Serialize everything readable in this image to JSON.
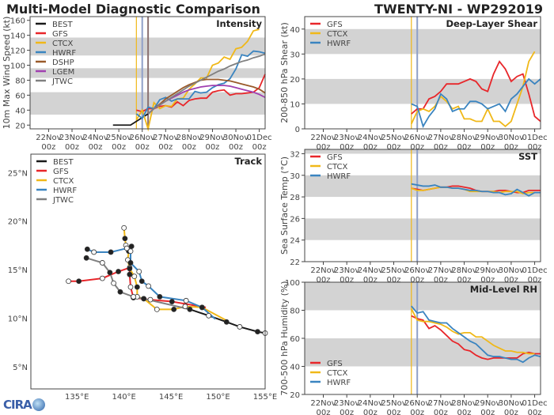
{
  "header": {
    "title": "Multi-Model Diagnostic Comparison",
    "storm": "TWENTY-NI - WP292019"
  },
  "logo": {
    "text": "CIRA"
  },
  "colors": {
    "BEST": "#1a1a1a",
    "GFS": "#e8262a",
    "CTCX": "#f0b818",
    "HWRF": "#3a84c0",
    "DSHP": "#9a5a2a",
    "LGEM": "#a040b0",
    "JTWC": "#808080",
    "band": "#d3d3d3"
  },
  "chart_data": [
    {
      "id": "intensity",
      "type": "line",
      "title": "Intensity",
      "ylabel": "10m Max Wind Speed (kt)",
      "ylim": [
        15,
        165
      ],
      "yticks": [
        20,
        40,
        60,
        80,
        100,
        120,
        140,
        160
      ],
      "bands": [
        [
          34,
          64
        ],
        [
          83,
          96
        ],
        [
          113,
          137
        ]
      ],
      "xlim": [
        "2019-11-21T05:00Z",
        "2019-12-01T06:00Z"
      ],
      "xticks": [
        "2019-11-22",
        "2019-11-23",
        "2019-11-24",
        "2019-11-25",
        "2019-11-26",
        "2019-11-27",
        "2019-11-28",
        "2019-11-29",
        "2019-11-30",
        "2019-12-01"
      ],
      "xticklabels": [
        [
          "22Nov",
          "00z"
        ],
        [
          "23Nov",
          "00z"
        ],
        [
          "24Nov",
          "00z"
        ],
        [
          "25Nov",
          "00z"
        ],
        [
          "26Nov",
          "00z"
        ],
        [
          "27Nov",
          "00z"
        ],
        [
          "28Nov",
          "00z"
        ],
        [
          "29Nov",
          "00z"
        ],
        [
          "30Nov",
          "00z"
        ],
        [
          "01Dec",
          "00z"
        ]
      ],
      "vlines": [
        {
          "t": "2019-11-25T18:00Z",
          "color": "#f0b818"
        },
        {
          "t": "2019-11-26T00:00Z",
          "color": "#8fa0c8"
        },
        {
          "t": "2019-11-26T06:00Z",
          "color": "#8a7070"
        }
      ],
      "legend": "top-left",
      "start": "2019-11-24T18:00Z",
      "step_hours": 6,
      "series": [
        {
          "name": "BEST",
          "values": [
            20,
            20,
            20,
            20,
            25,
            30,
            35
          ]
        },
        {
          "name": "GFS",
          "values": [
            null,
            null,
            null,
            null,
            40,
            38,
            42,
            42,
            45,
            46,
            44,
            51,
            46,
            53,
            55,
            56,
            56,
            64,
            66,
            67,
            60,
            62,
            62,
            63,
            64,
            70,
            88
          ]
        },
        {
          "name": "CTCX",
          "values": [
            null,
            null,
            null,
            null,
            27,
            40,
            15,
            50,
            42,
            46,
            45,
            55,
            56,
            68,
            75,
            83,
            83,
            100,
            103,
            111,
            108,
            122,
            124,
            132,
            146,
            148
          ]
        },
        {
          "name": "HWRF",
          "values": [
            null,
            null,
            null,
            null,
            35,
            29,
            44,
            42,
            54,
            57,
            52,
            55,
            55,
            55,
            65,
            63,
            64,
            70,
            74,
            76,
            82,
            95,
            114,
            112,
            119,
            118,
            116
          ]
        },
        {
          "name": "DSHP",
          "values": [
            null,
            null,
            null,
            null,
            null,
            null,
            35,
            42,
            48,
            55,
            60,
            65,
            70,
            74,
            77,
            80,
            81,
            81,
            81,
            80,
            79,
            77,
            75,
            73,
            71,
            68,
            63
          ]
        },
        {
          "name": "LGEM",
          "values": [
            null,
            null,
            null,
            null,
            null,
            null,
            35,
            42,
            47,
            52,
            56,
            60,
            64,
            67,
            69,
            71,
            72,
            73,
            73,
            73,
            72,
            70,
            68,
            66,
            64,
            61,
            57
          ]
        },
        {
          "name": "JTWC",
          "values": [
            null,
            null,
            null,
            null,
            null,
            null,
            35,
            42,
            47,
            52,
            57,
            62,
            67,
            72,
            76,
            80,
            84,
            88,
            92,
            95,
            99,
            102,
            105,
            107,
            110,
            112,
            115
          ]
        }
      ]
    },
    {
      "id": "shear",
      "type": "line",
      "title": "Deep-Layer Shear",
      "ylabel": "200-850 hPa Shear (kt)",
      "ylim": [
        0,
        45
      ],
      "yticks": [
        0,
        10,
        20,
        30,
        40
      ],
      "bands": [
        [
          10,
          20
        ],
        [
          30,
          40
        ]
      ],
      "xlim": [
        "2019-11-21T05:00Z",
        "2019-12-01T06:00Z"
      ],
      "xticks": [
        "2019-11-22",
        "2019-11-23",
        "2019-11-24",
        "2019-11-25",
        "2019-11-26",
        "2019-11-27",
        "2019-11-28",
        "2019-11-29",
        "2019-11-30",
        "2019-12-01"
      ],
      "xticklabels": [
        [
          "22Nov",
          "00z"
        ],
        [
          "23Nov",
          "00z"
        ],
        [
          "24Nov",
          "00z"
        ],
        [
          "25Nov",
          "00z"
        ],
        [
          "26Nov",
          "00z"
        ],
        [
          "27Nov",
          "00z"
        ],
        [
          "28Nov",
          "00z"
        ],
        [
          "29Nov",
          "00z"
        ],
        [
          "30Nov",
          "00z"
        ],
        [
          "01Dec",
          "00z"
        ]
      ],
      "vlines": [
        {
          "t": "2019-11-25T18:00Z",
          "color": "#f0b818"
        },
        {
          "t": "2019-11-26T00:00Z",
          "color": "#8fa0c8"
        }
      ],
      "legend": "top-left",
      "start": "2019-11-24T18:00Z",
      "step_hours": 6,
      "series": [
        {
          "name": "GFS",
          "values": [
            null,
            null,
            null,
            null,
            6,
            8,
            8,
            12,
            13,
            15,
            18,
            18,
            18,
            19,
            20,
            19,
            16,
            15,
            22,
            27,
            24,
            19,
            21,
            22,
            14,
            5,
            3
          ]
        },
        {
          "name": "CTCX",
          "values": [
            null,
            null,
            null,
            null,
            2,
            7,
            8,
            7,
            9,
            13,
            11,
            8,
            9,
            4,
            4,
            3,
            3,
            8,
            3,
            3,
            1,
            3,
            10,
            17,
            27,
            31
          ]
        },
        {
          "name": "HWRF",
          "values": [
            null,
            null,
            null,
            null,
            10,
            9,
            1,
            5,
            8,
            14,
            12,
            7,
            8,
            8,
            11,
            11,
            10,
            8,
            9,
            10,
            7,
            12,
            14,
            17,
            20,
            18,
            20
          ]
        }
      ]
    },
    {
      "id": "sst",
      "type": "line",
      "title": "SST",
      "ylabel": "Sea Surface Temp (°C)",
      "ylim": [
        22,
        32.4
      ],
      "yticks": [
        22,
        24,
        26,
        28,
        30,
        32
      ],
      "bands": [
        [
          24,
          26
        ],
        [
          28,
          30
        ],
        [
          32,
          32.4
        ]
      ],
      "xlim": [
        "2019-11-21T05:00Z",
        "2019-12-01T06:00Z"
      ],
      "xticks": [
        "2019-11-22",
        "2019-11-23",
        "2019-11-24",
        "2019-11-25",
        "2019-11-26",
        "2019-11-27",
        "2019-11-28",
        "2019-11-29",
        "2019-11-30",
        "2019-12-01"
      ],
      "xticklabels": [
        [
          "22Nov",
          "00z"
        ],
        [
          "23Nov",
          "00z"
        ],
        [
          "24Nov",
          "00z"
        ],
        [
          "25Nov",
          "00z"
        ],
        [
          "26Nov",
          "00z"
        ],
        [
          "27Nov",
          "00z"
        ],
        [
          "28Nov",
          "00z"
        ],
        [
          "29Nov",
          "00z"
        ],
        [
          "30Nov",
          "00z"
        ],
        [
          "01Dec",
          "00z"
        ]
      ],
      "vlines": [
        {
          "t": "2019-11-25T18:00Z",
          "color": "#f0b818"
        },
        {
          "t": "2019-11-26T00:00Z",
          "color": "#8fa0c8"
        }
      ],
      "legend": "top-left",
      "start": "2019-11-24T18:00Z",
      "step_hours": 6,
      "series": [
        {
          "name": "GFS",
          "values": [
            null,
            null,
            null,
            null,
            28.8,
            28.7,
            28.6,
            28.7,
            28.8,
            28.9,
            28.9,
            29.0,
            29.0,
            28.9,
            28.8,
            28.6,
            28.5,
            28.5,
            28.5,
            28.6,
            28.6,
            28.5,
            28.4,
            28.4,
            28.6,
            28.6,
            28.6
          ]
        },
        {
          "name": "CTCX",
          "values": [
            null,
            null,
            null,
            null,
            28.8,
            28.6,
            28.6,
            28.7,
            28.8,
            28.9,
            28.9,
            28.8,
            28.8,
            28.7,
            28.5,
            28.5,
            28.5,
            28.5,
            28.5,
            28.4,
            28.5,
            28.5,
            28.5,
            28.3,
            28.4,
            28.4
          ]
        },
        {
          "name": "HWRF",
          "values": [
            null,
            null,
            null,
            null,
            29.2,
            29.1,
            29.0,
            29.0,
            29.1,
            28.9,
            28.9,
            28.8,
            28.8,
            28.7,
            28.6,
            28.6,
            28.5,
            28.5,
            28.4,
            28.4,
            28.2,
            28.3,
            28.7,
            28.4,
            28.1,
            28.4,
            28.4
          ]
        }
      ]
    },
    {
      "id": "rh",
      "type": "line",
      "title": "Mid-Level RH",
      "ylabel": "700-500 hPa Humidity (%)",
      "ylim": [
        20,
        100
      ],
      "yticks": [
        20,
        40,
        60,
        80,
        100
      ],
      "bands": [
        [
          40,
          60
        ],
        [
          80,
          100
        ]
      ],
      "xlim": [
        "2019-11-21T05:00Z",
        "2019-12-01T06:00Z"
      ],
      "xticks": [
        "2019-11-22",
        "2019-11-23",
        "2019-11-24",
        "2019-11-25",
        "2019-11-26",
        "2019-11-27",
        "2019-11-28",
        "2019-11-29",
        "2019-11-30",
        "2019-12-01"
      ],
      "xticklabels": [
        [
          "22Nov",
          "00z"
        ],
        [
          "23Nov",
          "00z"
        ],
        [
          "24Nov",
          "00z"
        ],
        [
          "25Nov",
          "00z"
        ],
        [
          "26Nov",
          "00z"
        ],
        [
          "27Nov",
          "00z"
        ],
        [
          "28Nov",
          "00z"
        ],
        [
          "29Nov",
          "00z"
        ],
        [
          "30Nov",
          "00z"
        ],
        [
          "01Dec",
          "00z"
        ]
      ],
      "vlines": [
        {
          "t": "2019-11-25T18:00Z",
          "color": "#f0b818"
        },
        {
          "t": "2019-11-26T00:00Z",
          "color": "#8fa0c8"
        }
      ],
      "legend": "bottom-left",
      "start": "2019-11-24T18:00Z",
      "step_hours": 6,
      "series": [
        {
          "name": "GFS",
          "values": [
            null,
            null,
            null,
            null,
            76,
            74,
            73,
            67,
            69,
            66,
            62,
            58,
            56,
            52,
            51,
            48,
            46,
            45,
            46,
            46,
            46,
            46,
            46,
            49,
            50,
            49,
            49
          ]
        },
        {
          "name": "CTCX",
          "values": [
            null,
            null,
            null,
            null,
            81,
            73,
            72,
            72,
            71,
            70,
            68,
            65,
            63,
            64,
            64,
            61,
            61,
            58,
            55,
            53,
            51,
            51,
            50,
            50,
            49,
            49
          ]
        },
        {
          "name": "HWRF",
          "values": [
            null,
            null,
            null,
            null,
            83,
            78,
            79,
            73,
            72,
            71,
            71,
            67,
            64,
            61,
            58,
            56,
            52,
            48,
            47,
            47,
            46,
            45,
            45,
            43,
            46,
            48,
            47
          ]
        }
      ]
    },
    {
      "id": "track",
      "type": "line",
      "title": "Track",
      "xlim": [
        130.1,
        155.0
      ],
      "ylim": [
        2.7,
        26.9
      ],
      "xticks": [
        135,
        140,
        145,
        150,
        155
      ],
      "xticklabels": [
        "135°E",
        "140°E",
        "145°E",
        "150°E",
        "155°E"
      ],
      "yticks": [
        5,
        10,
        15,
        20,
        25
      ],
      "yticklabels": [
        "5°N",
        "10°N",
        "15°N",
        "20°N",
        "25°N"
      ],
      "legend": "top-left",
      "series": [
        {
          "name": "BEST",
          "lonlat": [
            [
              155.0,
              8.45
            ],
            [
              154.2,
              8.6
            ],
            [
              152.3,
              9.1
            ],
            [
              150.9,
              9.6
            ],
            [
              149.0,
              10.25
            ],
            [
              147.0,
              10.9
            ]
          ]
        },
        {
          "name": "GFS",
          "lonlat": [
            [
              148.7,
              11.1
            ],
            [
              145.1,
              11.7
            ],
            [
              142.8,
              11.9
            ],
            [
              141.0,
              12.1
            ],
            [
              140.7,
              13.2
            ],
            [
              140.6,
              14.5
            ],
            [
              140.6,
              15.2
            ],
            [
              139.4,
              14.8
            ],
            [
              137.7,
              14.1
            ],
            [
              135.2,
              13.8
            ],
            [
              134.1,
              13.8
            ]
          ]
        },
        {
          "name": "CTCX",
          "lonlat": [
            [
              151.0,
              9.7
            ],
            [
              148.3,
              11.1
            ],
            [
              146.5,
              11.2
            ],
            [
              145.3,
              10.9
            ],
            [
              143.5,
              10.9
            ],
            [
              142.1,
              12.0
            ],
            [
              141.4,
              12.2
            ],
            [
              141.4,
              13.2
            ],
            [
              141.1,
              14.3
            ],
            [
              140.6,
              15.1
            ],
            [
              140.4,
              16.0
            ],
            [
              140.5,
              16.9
            ],
            [
              140.2,
              17.5
            ],
            [
              140.1,
              18.2
            ],
            [
              140.0,
              19.3
            ]
          ]
        },
        {
          "name": "HWRF",
          "lonlat": [
            [
              149.7,
              9.9
            ],
            [
              148.3,
              11.1
            ],
            [
              146.6,
              11.8
            ],
            [
              143.8,
              12.2
            ],
            [
              142.6,
              13.3
            ],
            [
              141.9,
              13.8
            ],
            [
              141.6,
              14.8
            ],
            [
              140.7,
              15.7
            ],
            [
              140.7,
              16.9
            ],
            [
              140.8,
              17.4
            ],
            [
              140.3,
              17.2
            ],
            [
              138.6,
              16.8
            ],
            [
              136.8,
              16.8
            ],
            [
              136.1,
              17.1
            ]
          ]
        },
        {
          "name": "JTWC",
          "lonlat": [
            [
              147.0,
              10.9
            ],
            [
              142.1,
              12.0
            ],
            [
              141.0,
              12.2
            ],
            [
              139.6,
              12.7
            ],
            [
              138.9,
              13.6
            ],
            [
              138.5,
              14.7
            ],
            [
              137.7,
              15.7
            ],
            [
              136.0,
              16.2
            ]
          ]
        }
      ]
    }
  ]
}
